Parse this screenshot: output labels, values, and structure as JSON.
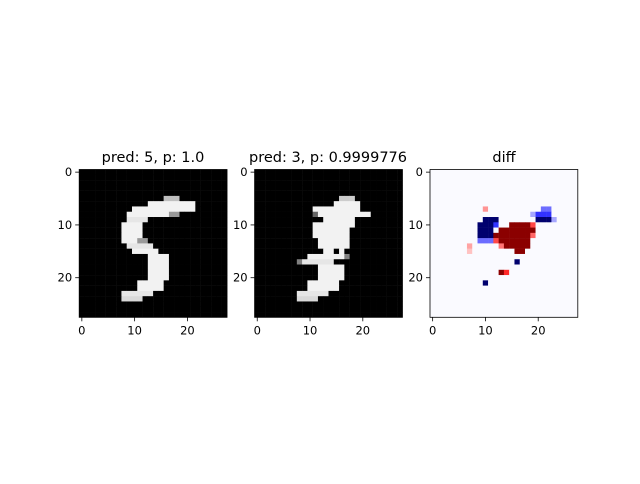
{
  "figure": {
    "background": "#ffffff"
  },
  "chart_data": [
    {
      "type": "heatmap",
      "title": "pred: 5, p: 1.0",
      "colormap": "gray",
      "x_ticks": [
        "0",
        "10",
        "20"
      ],
      "y_ticks": [
        "0",
        "10",
        "20"
      ],
      "x_tick_values": [
        0,
        10,
        20
      ],
      "y_tick_values": [
        0,
        10,
        20
      ],
      "grid_size": [
        28,
        28
      ],
      "note": "28x28 grayscale MNIST digit '5' (white strokes on black)"
    },
    {
      "type": "heatmap",
      "title": "pred: 3, p: 0.9999776",
      "colormap": "gray",
      "x_ticks": [
        "0",
        "10",
        "20"
      ],
      "y_ticks": [
        "0",
        "10",
        "20"
      ],
      "x_tick_values": [
        0,
        10,
        20
      ],
      "y_tick_values": [
        0,
        10,
        20
      ],
      "grid_size": [
        28,
        28
      ],
      "note": "adversarially perturbed digit, classified as 3"
    },
    {
      "type": "heatmap",
      "title": "diff",
      "colormap": "seismic",
      "x_ticks": [
        "0",
        "10",
        "20"
      ],
      "y_ticks": [
        "0",
        "10",
        "20"
      ],
      "x_tick_values": [
        0,
        10,
        20
      ],
      "y_tick_values": [
        0,
        10,
        20
      ],
      "grid_size": [
        28,
        28
      ],
      "colors": {
        "positive": "#8b0000",
        "positive_light": "#ff3030",
        "negative": "#00006e",
        "negative_light": "#3030e0",
        "zero": "#fafaff"
      }
    }
  ]
}
